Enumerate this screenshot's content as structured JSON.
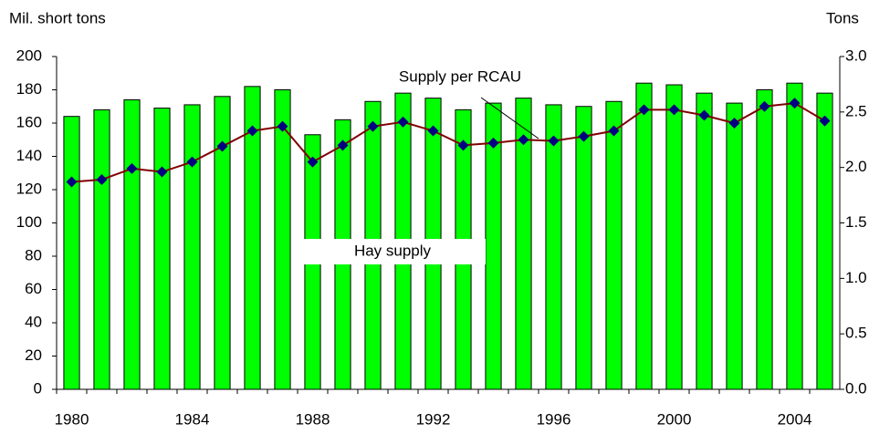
{
  "chart_data": {
    "type": "bar",
    "y_label": "Mil. short tons",
    "y2_label": "Tons",
    "categories": [
      "1980",
      null,
      null,
      null,
      "1984",
      null,
      null,
      null,
      "1988",
      null,
      null,
      null,
      "1992",
      null,
      null,
      null,
      "1996",
      null,
      null,
      null,
      "2000",
      null,
      null,
      null,
      "2004",
      null
    ],
    "series": [
      {
        "name": "Hay supply",
        "type": "bar",
        "color": "#00ff00",
        "values": [
          164,
          168,
          174,
          169,
          171,
          176,
          182,
          180,
          153,
          162,
          173,
          178,
          175,
          168,
          172,
          175,
          171,
          170,
          173,
          184,
          183,
          178,
          172,
          180,
          184,
          178
        ]
      },
      {
        "name": "Supply per RCAU",
        "type": "line",
        "axis": "y2",
        "color": "#800000",
        "marker_color": "#000080",
        "values": [
          1.87,
          1.89,
          1.99,
          1.96,
          2.05,
          2.19,
          2.33,
          2.37,
          2.05,
          2.2,
          2.37,
          2.41,
          2.33,
          2.2,
          2.22,
          2.25,
          2.24,
          2.28,
          2.33,
          2.52,
          2.52,
          2.47,
          2.4,
          2.55,
          2.58,
          2.42
        ]
      }
    ],
    "ylim": [
      0,
      200
    ],
    "yticks": [
      0,
      20,
      40,
      60,
      80,
      100,
      120,
      140,
      160,
      180,
      200
    ],
    "y2lim": [
      0,
      3
    ],
    "y2ticks": [
      {
        "value": 0,
        "label": "0.0"
      },
      {
        "value": 0.5,
        "label": "0.5"
      },
      {
        "value": 1,
        "label": "1.0"
      },
      {
        "value": 1.5,
        "label": "1.5"
      },
      {
        "value": 2,
        "label": "2.0"
      },
      {
        "value": 2.5,
        "label": "2.5"
      },
      {
        "value": 3,
        "label": "3.0"
      }
    ],
    "grid": false
  }
}
